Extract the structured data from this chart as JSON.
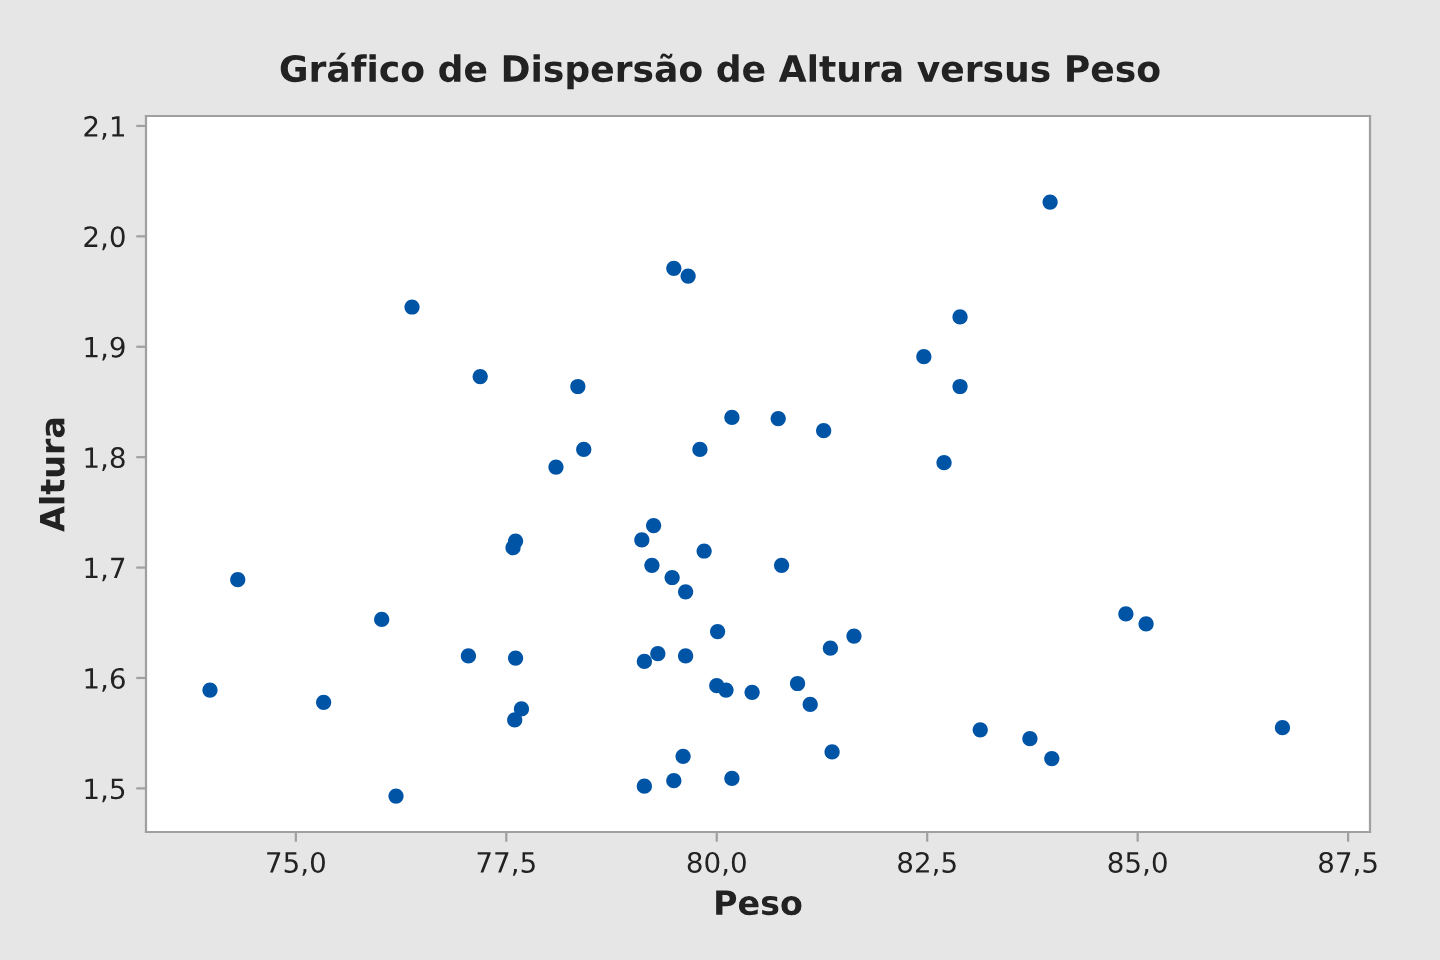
{
  "chart_data": {
    "type": "scatter",
    "title": "Gráfico de Dispersão de Altura versus Peso",
    "xlabel": "Peso",
    "ylabel": "Altura",
    "x": [
      73.98,
      74.31,
      75.33,
      76.02,
      76.19,
      76.38,
      77.05,
      77.19,
      77.61,
      77.58,
      77.61,
      77.68,
      77.6,
      78.09,
      78.35,
      78.42,
      79.49,
      79.66,
      80.18,
      80.73,
      81.27,
      82.46,
      82.89,
      82.89,
      82.7,
      79.8,
      79.25,
      79.11,
      79.85,
      79.23,
      79.47,
      79.63,
      80.77,
      80.01,
      81.35,
      81.63,
      79.14,
      79.3,
      79.63,
      80.0,
      80.11,
      80.42,
      80.96,
      81.11,
      83.13,
      79.6,
      81.37,
      79.14,
      79.49,
      80.18,
      83.96,
      84.86,
      85.1,
      83.72,
      83.98,
      86.72
    ],
    "series": [
      {
        "color": "#0054a6",
        "values": [
          1.589,
          1.689,
          1.578,
          1.653,
          1.493,
          1.936,
          1.62,
          1.873,
          1.724,
          1.718,
          1.618,
          1.572,
          1.562,
          1.791,
          1.864,
          1.807,
          1.971,
          1.964,
          1.836,
          1.835,
          1.824,
          1.891,
          1.927,
          1.864,
          1.795,
          1.807,
          1.738,
          1.725,
          1.715,
          1.702,
          1.691,
          1.678,
          1.702,
          1.642,
          1.627,
          1.638,
          1.615,
          1.622,
          1.62,
          1.593,
          1.589,
          1.587,
          1.595,
          1.576,
          1.553,
          1.529,
          1.533,
          1.502,
          1.507,
          1.509,
          2.031,
          1.658,
          1.649,
          1.545,
          1.527,
          1.555
        ]
      }
    ],
    "xlim": [
      73.22,
      87.76
    ],
    "xticks": [
      {
        "value": 75,
        "label": "75,0"
      },
      {
        "value": 77.5,
        "label": "77,5"
      },
      {
        "value": 80,
        "label": "80,0"
      },
      {
        "value": 82.5,
        "label": "82,5"
      },
      {
        "value": 85,
        "label": "85,0"
      },
      {
        "value": 87.5,
        "label": "87,5"
      }
    ],
    "ylim": [
      1.4605,
      2.109
    ],
    "yticks": [
      {
        "value": 1.5,
        "label": "1,5"
      },
      {
        "value": 1.6,
        "label": "1,6"
      },
      {
        "value": 1.7,
        "label": "1,7"
      },
      {
        "value": 1.8,
        "label": "1,8"
      },
      {
        "value": 1.9,
        "label": "1,9"
      },
      {
        "value": 2.0,
        "label": "2,0"
      },
      {
        "value": 2.1,
        "label": "2,1"
      }
    ],
    "grid": false,
    "legend": false,
    "marker": "circle"
  }
}
